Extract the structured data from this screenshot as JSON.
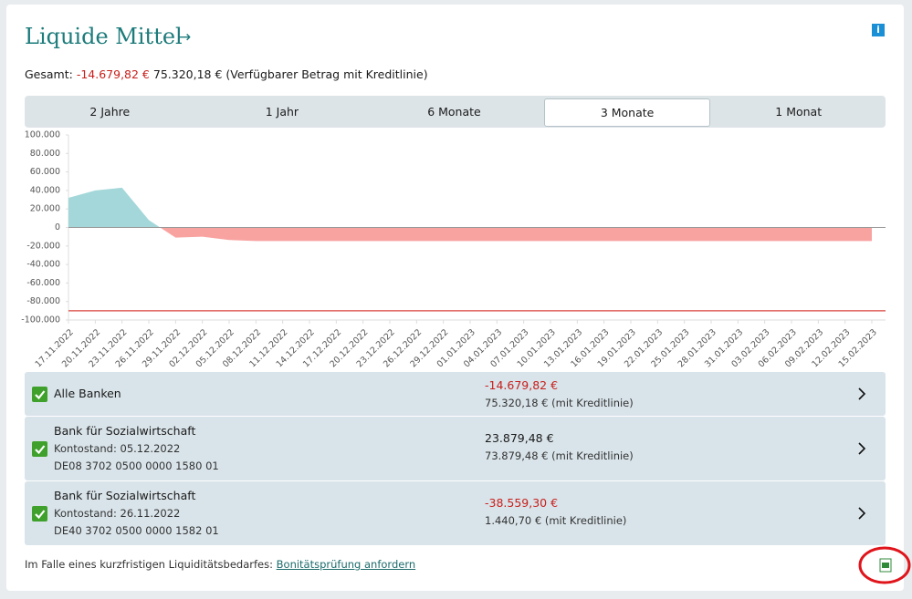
{
  "header": {
    "title": "Liquide Mittel",
    "arrow": "→",
    "info": "i"
  },
  "summary": {
    "label": "Gesamt:",
    "balance": "-14.679,82 €",
    "available": "75.320,18 € (Verfügbarer Betrag mit Kreditlinie)"
  },
  "tabs": {
    "items": [
      "2 Jahre",
      "1 Jahr",
      "6 Monate",
      "3 Monate",
      "1 Monat"
    ],
    "active": 3
  },
  "chart_data": {
    "type": "area",
    "categories": [
      "17.11.2022",
      "20.11.2022",
      "23.11.2022",
      "26.11.2022",
      "29.11.2022",
      "02.12.2022",
      "05.12.2022",
      "08.12.2022",
      "11.12.2022",
      "14.12.2022",
      "17.12.2022",
      "20.12.2022",
      "23.12.2022",
      "26.12.2022",
      "29.12.2022",
      "01.01.2023",
      "04.01.2023",
      "07.01.2023",
      "10.01.2023",
      "13.01.2023",
      "16.01.2023",
      "19.01.2023",
      "22.01.2023",
      "25.01.2023",
      "28.01.2023",
      "31.01.2023",
      "03.02.2023",
      "06.02.2023",
      "09.02.2023",
      "12.02.2023",
      "15.02.2023"
    ],
    "values": [
      32000,
      40000,
      43000,
      8000,
      -11000,
      -10000,
      -13500,
      -14680,
      -14680,
      -14680,
      -14680,
      -14680,
      -14680,
      -14680,
      -14680,
      -14680,
      -14680,
      -14680,
      -14680,
      -14680,
      -14680,
      -14680,
      -14680,
      -14680,
      -14680,
      -14680,
      -14680,
      -14680,
      -14680,
      -14680,
      -14680
    ],
    "positive_color": "#a3d7d9",
    "negative_color": "#f9a3a1",
    "limit_line": {
      "value": -90000,
      "color": "#d9423b"
    },
    "ylim": [
      -100000,
      100000
    ],
    "yticks": [
      {
        "value": 100000,
        "label": "100.000"
      },
      {
        "value": 80000,
        "label": "80.000"
      },
      {
        "value": 60000,
        "label": "60.000"
      },
      {
        "value": 40000,
        "label": "40.000"
      },
      {
        "value": 20000,
        "label": "20.000"
      },
      0,
      {
        "value": -20000,
        "label": "-20.000"
      },
      {
        "value": -40000,
        "label": "-40.000"
      },
      {
        "value": -60000,
        "label": "-60.000"
      },
      {
        "value": -80000,
        "label": "-80.000"
      },
      {
        "value": -100000,
        "label": "-100.000"
      }
    ]
  },
  "accounts": [
    {
      "name": "Alle Banken",
      "details": [],
      "balance": "-14.679,82 €",
      "credit": "75.320,18 € (mit Kreditlinie)"
    },
    {
      "name": "Bank für Sozialwirtschaft",
      "details": [
        "Kontostand: 05.12.2022",
        "DE08 3702 0500 0000 1580 01"
      ],
      "balance": "23.879,48 €",
      "credit": "73.879,48 € (mit Kreditlinie)"
    },
    {
      "name": "Bank für Sozialwirtschaft",
      "details": [
        "Kontostand: 26.11.2022",
        "DE40 3702 0500 0000 1582 01"
      ],
      "balance": "-38.559,30 €",
      "credit": "1.440,70 € (mit Kreditlinie)"
    }
  ],
  "footer": {
    "text": "Im Falle eines kurzfristigen Liquiditätsbedarfes:",
    "link": "Bonitätsprüfung anfordern"
  }
}
